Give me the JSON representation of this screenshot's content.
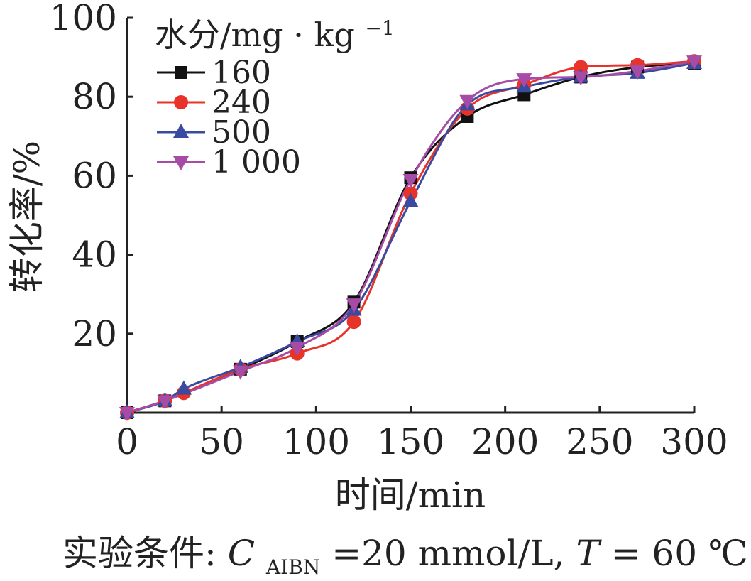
{
  "chart_data": {
    "type": "line",
    "xlabel": "时间/min",
    "ylabel": "转化率/%",
    "xlim": [
      0,
      300
    ],
    "ylim": [
      0,
      100
    ],
    "x_ticks": [
      "0",
      "50",
      "100",
      "150",
      "200",
      "250",
      "300"
    ],
    "y_ticks": [
      "20",
      "40",
      "60",
      "80",
      "100"
    ],
    "grid": false,
    "legend_title_main": "水分/mg",
    "legend_title_sep": "·",
    "legend_title_unit": "kg",
    "legend_title_sup": "−1",
    "legend_placement": "top-left",
    "series": [
      {
        "name": "160",
        "color": "#111111",
        "marker": "square",
        "x": [
          0,
          20,
          60,
          90,
          120,
          150,
          180,
          210,
          240,
          270,
          300
        ],
        "y": [
          0,
          3,
          11,
          18,
          28,
          59.5,
          75,
          80.5,
          85,
          87.5,
          88.5
        ]
      },
      {
        "name": "240",
        "color": "#e8332a",
        "marker": "circle",
        "x": [
          0,
          20,
          30,
          60,
          90,
          120,
          150,
          180,
          210,
          240,
          270,
          300
        ],
        "y": [
          0,
          3,
          5,
          11,
          15,
          23,
          55.5,
          77,
          83,
          87.5,
          88,
          89
        ]
      },
      {
        "name": "500",
        "color": "#3a4aa0",
        "marker": "triangle-up",
        "x": [
          0,
          20,
          30,
          60,
          90,
          120,
          150,
          180,
          210,
          240,
          270,
          300
        ],
        "y": [
          0,
          3,
          6,
          11.5,
          18,
          26,
          53.5,
          78,
          82.5,
          85,
          86,
          88.5
        ]
      },
      {
        "name": "1 000",
        "color": "#a64ca6",
        "marker": "triangle-down",
        "x": [
          0,
          20,
          60,
          90,
          120,
          150,
          180,
          210,
          240,
          270,
          300
        ],
        "y": [
          0,
          3,
          10.5,
          16.5,
          27.5,
          59,
          79,
          84.5,
          85,
          86.5,
          89
        ]
      }
    ]
  },
  "caption": {
    "prefix": "实验条件: ",
    "c_var": "C",
    "c_sub": "AIBN",
    "c_value": "=20 mmol/L, ",
    "t_var": "T",
    "t_value": "= 60 ℃"
  }
}
